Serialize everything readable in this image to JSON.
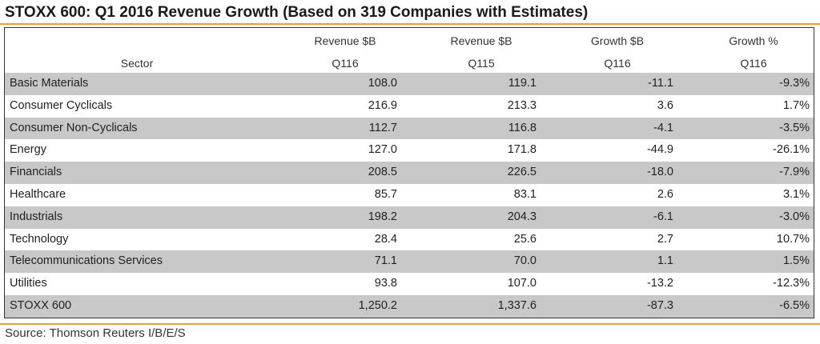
{
  "chart_data": {
    "type": "table",
    "title": "STOXX 600: Q1 2016 Revenue Growth (Based on 319 Companies with Estimates)",
    "columns": [
      {
        "line1": "",
        "line2": "Sector"
      },
      {
        "line1": "Revenue $B",
        "line2": "Q116"
      },
      {
        "line1": "Revenue $B",
        "line2": "Q115"
      },
      {
        "line1": "Growth $B",
        "line2": "Q116"
      },
      {
        "line1": "Growth %",
        "line2": "Q116"
      }
    ],
    "rows": [
      {
        "sector": "Basic Materials",
        "rev_q116": "108.0",
        "rev_q115": "119.1",
        "growth_b": "-11.1",
        "growth_pct": "-9.3%"
      },
      {
        "sector": "Consumer Cyclicals",
        "rev_q116": "216.9",
        "rev_q115": "213.3",
        "growth_b": "3.6",
        "growth_pct": "1.7%"
      },
      {
        "sector": "Consumer Non-Cyclicals",
        "rev_q116": "112.7",
        "rev_q115": "116.8",
        "growth_b": "-4.1",
        "growth_pct": "-3.5%"
      },
      {
        "sector": "Energy",
        "rev_q116": "127.0",
        "rev_q115": "171.8",
        "growth_b": "-44.9",
        "growth_pct": "-26.1%"
      },
      {
        "sector": "Financials",
        "rev_q116": "208.5",
        "rev_q115": "226.5",
        "growth_b": "-18.0",
        "growth_pct": "-7.9%"
      },
      {
        "sector": "Healthcare",
        "rev_q116": "85.7",
        "rev_q115": "83.1",
        "growth_b": "2.6",
        "growth_pct": "3.1%"
      },
      {
        "sector": "Industrials",
        "rev_q116": "198.2",
        "rev_q115": "204.3",
        "growth_b": "-6.1",
        "growth_pct": "-3.0%"
      },
      {
        "sector": "Technology",
        "rev_q116": "28.4",
        "rev_q115": "25.6",
        "growth_b": "2.7",
        "growth_pct": "10.7%"
      },
      {
        "sector": "Telecommunications Services",
        "rev_q116": "71.1",
        "rev_q115": "70.0",
        "growth_b": "1.1",
        "growth_pct": "1.5%"
      },
      {
        "sector": "Utilities",
        "rev_q116": "93.8",
        "rev_q115": "107.0",
        "growth_b": "-13.2",
        "growth_pct": "-12.3%"
      },
      {
        "sector": "STOXX 600",
        "rev_q116": "1,250.2",
        "rev_q115": "1,337.6",
        "growth_b": "-87.3",
        "growth_pct": "-6.5%"
      }
    ],
    "source": "Source: Thomson Reuters I/B/E/S",
    "colors": {
      "accent_rule": "#f0a02c",
      "shaded_row": "#c8c8c8",
      "border": "#333333"
    }
  }
}
